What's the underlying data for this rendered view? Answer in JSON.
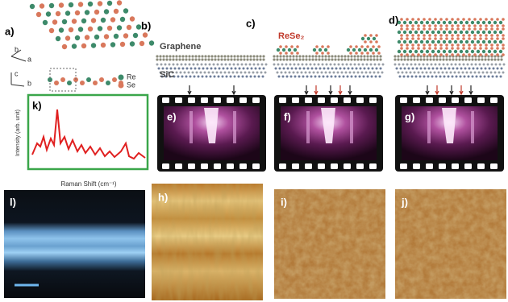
{
  "panels": {
    "a": {
      "label": "a)",
      "legend": [
        "Re",
        "Se"
      ],
      "axes": [
        "b",
        "a",
        "c",
        "b"
      ]
    },
    "b": {
      "label": "b)",
      "top_layer": "Graphene",
      "substrate": "SiC"
    },
    "c": {
      "label": "c)",
      "film": "ReSe₂"
    },
    "d": {
      "label": "d)"
    },
    "e": {
      "label": "e)"
    },
    "f": {
      "label": "f)"
    },
    "g": {
      "label": "g)"
    },
    "h": {
      "label": "h)"
    },
    "i": {
      "label": "i)"
    },
    "j": {
      "label": "j)"
    },
    "k": {
      "label": "k)",
      "y_axis_label": "Intensity (arb. unit)",
      "x_axis_label": "Raman Shift (cm⁻¹)"
    },
    "l": {
      "label": "l)"
    }
  }
}
